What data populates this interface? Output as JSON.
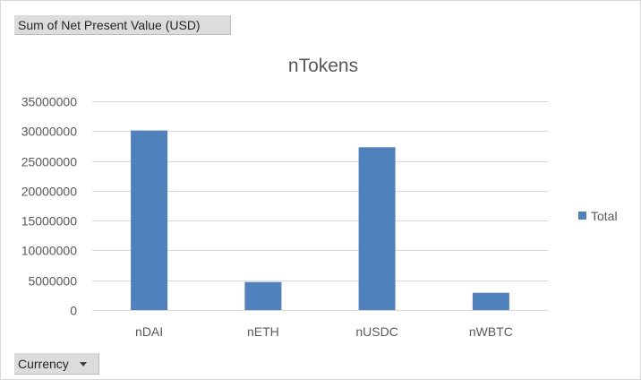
{
  "pivot": {
    "value_field": "Sum of Net Present Value (USD)",
    "axis_field": "Currency"
  },
  "chart_data": {
    "type": "bar",
    "title": "nTokens",
    "categories": [
      "nDAI",
      "nETH",
      "nUSDC",
      "nWBTC"
    ],
    "series": [
      {
        "name": "Total",
        "values": [
          30100000,
          4700000,
          27300000,
          2900000
        ]
      }
    ],
    "ylim": [
      0,
      35000000
    ],
    "yticks": [
      0,
      5000000,
      10000000,
      15000000,
      20000000,
      25000000,
      30000000,
      35000000
    ],
    "grid": true,
    "legend_position": "right",
    "colors": {
      "bar": "#4f81bd",
      "grid": "#d9d9d9",
      "text": "#595959"
    }
  }
}
